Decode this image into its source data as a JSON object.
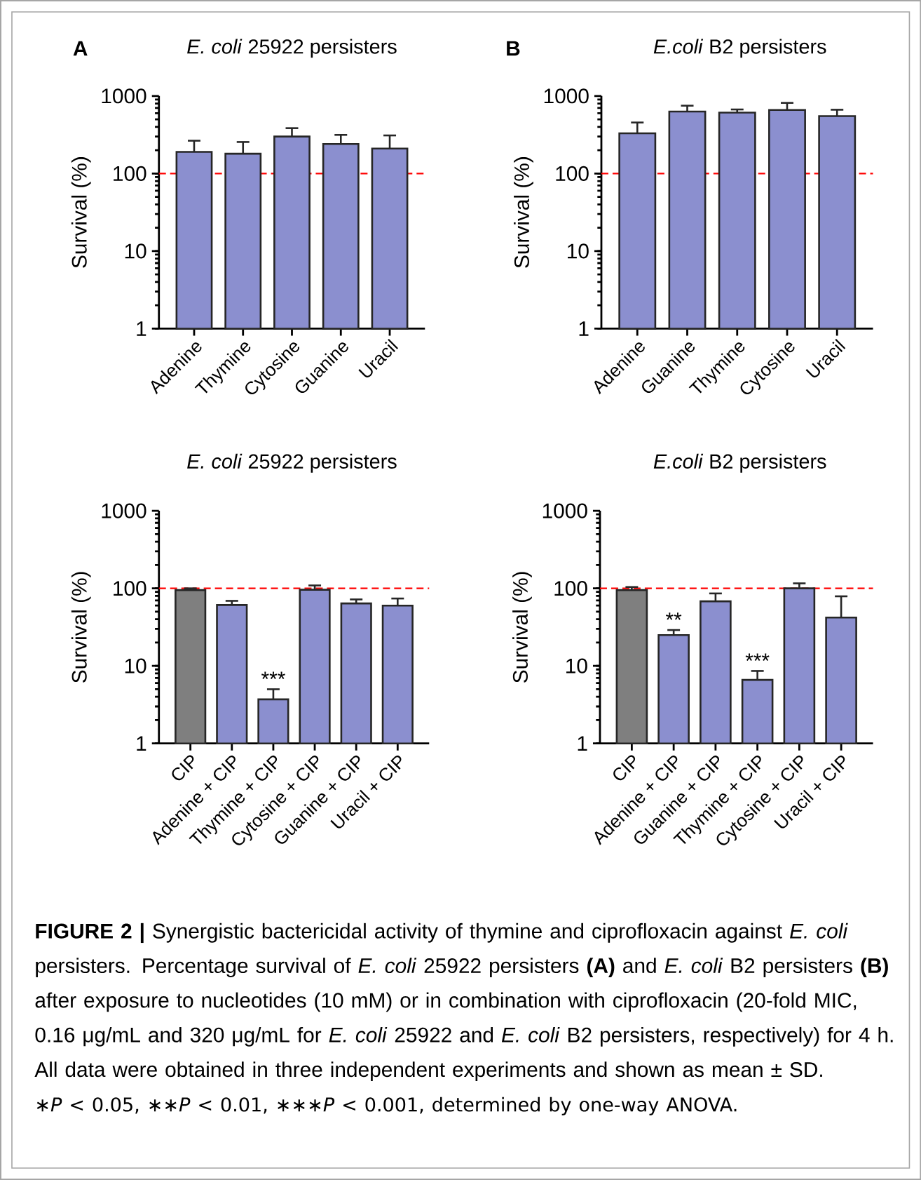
{
  "chart_data": [
    {
      "type": "bar",
      "title": "*E. coli* 25922 persisters",
      "ylabel": "Survival (%)",
      "categories": [
        "Adenine",
        "Thymine",
        "Cytosine",
        "Guanine",
        "Uracil"
      ],
      "values": [
        190,
        180,
        300,
        240,
        210
      ],
      "errors": [
        [
          190,
          265
        ],
        [
          180,
          255
        ],
        [
          300,
          385
        ],
        [
          240,
          315
        ],
        [
          210,
          310
        ]
      ],
      "color": "#8b8fcf",
      "log": true,
      "ylim": [
        1,
        1000
      ],
      "yticks": [
        1,
        10,
        100,
        1000
      ],
      "ref_lines": [
        {
          "axis": "y",
          "value": 100,
          "color": "#ff0000",
          "line_style": "dashed"
        }
      ],
      "annotations": [
        "A"
      ]
    },
    {
      "type": "bar",
      "title": "*E.coli* B2 persisters",
      "ylabel": "Survival (%)",
      "categories": [
        "Adenine",
        "Guanine",
        "Thymine",
        "Cytosine",
        "Uracil"
      ],
      "values": [
        330,
        630,
        610,
        660,
        550
      ],
      "errors": [
        [
          330,
          455
        ],
        [
          630,
          750
        ],
        [
          610,
          670
        ],
        [
          660,
          815
        ],
        [
          550,
          665
        ]
      ],
      "color": "#8b8fcf",
      "log": true,
      "ylim": [
        1,
        1000
      ],
      "yticks": [
        1,
        10,
        100,
        1000
      ],
      "ref_lines": [
        {
          "axis": "y",
          "value": 100,
          "color": "#ff0000",
          "line_style": "dashed"
        }
      ],
      "annotations": [
        "B"
      ]
    },
    {
      "type": "bar",
      "title": "*E. coli* 25922 persisters",
      "ylabel": "Survival (%)",
      "categories": [
        "CIP",
        "Adenine + CIP",
        "Thymine + CIP",
        "Cytosine + CIP",
        "Guanine + CIP",
        "Uracil + CIP"
      ],
      "values": [
        95,
        61,
        3.7,
        96,
        64,
        60
      ],
      "errors": [
        [
          95,
          100
        ],
        [
          61,
          69
        ],
        [
          3.7,
          5
        ],
        [
          96,
          109
        ],
        [
          64,
          72
        ],
        [
          60,
          74
        ]
      ],
      "colors": [
        "#7f7f7f",
        "#8b8fcf",
        "#8b8fcf",
        "#8b8fcf",
        "#8b8fcf",
        "#8b8fcf"
      ],
      "log": true,
      "ylim": [
        1,
        1000
      ],
      "yticks": [
        1,
        10,
        100,
        1000
      ],
      "ref_lines": [
        {
          "axis": "y",
          "value": 100,
          "color": "#ff0000",
          "line_style": "dashed"
        }
      ],
      "annotations": [
        {
          "text": "***",
          "x": "Thymine + CIP",
          "y": 3.7
        }
      ]
    },
    {
      "type": "bar",
      "title": "*E.coli* B2 persisters",
      "ylabel": "Survival (%)",
      "categories": [
        "CIP",
        "Adenine + CIP",
        "Guanine + CIP",
        "Thymine + CIP",
        "Cytosine + CIP",
        "Uracil + CIP"
      ],
      "values": [
        95,
        25,
        68,
        6.6,
        100,
        42
      ],
      "errors": [
        [
          95,
          104
        ],
        [
          25,
          29
        ],
        [
          68,
          86
        ],
        [
          6.6,
          8.6
        ],
        [
          100,
          116
        ],
        [
          42,
          79
        ]
      ],
      "colors": [
        "#7f7f7f",
        "#8b8fcf",
        "#8b8fcf",
        "#8b8fcf",
        "#8b8fcf",
        "#8b8fcf"
      ],
      "log": true,
      "ylim": [
        1,
        1000
      ],
      "yticks": [
        1,
        10,
        100,
        1000
      ],
      "ref_lines": [
        {
          "axis": "y",
          "value": 100,
          "color": "#ff0000",
          "line_style": "dashed"
        }
      ],
      "annotations": [
        {
          "text": "**",
          "x": "Adenine + CIP",
          "y": 25
        },
        {
          "text": "***",
          "x": "Thymine + CIP",
          "y": 6.6
        },
        "**FIGURE 2 |** Synergistic bactericidal activity of thymine and ciprofloxacin against *E. coli* persisters. Percentage survival of *E. coli* 25922 persisters **(A)** and *E. coli* B2 persisters **(B)** after exposure to nucleotides (10 mM) or in combination with ciprofloxacin (20-fold MIC, 0.16 μg/mL and 320 μg/mL for *E. coli* 25922 and *E. coli* B2 persisters, respectively) for 4 h. All data were obtained in three independent experiments and shown as mean ± SD.",
        "∗*P* < 0.05, ∗∗*P* < 0.01, ∗∗∗*P* < 0.001, determined by one-way ANOVA."
      ]
    }
  ]
}
